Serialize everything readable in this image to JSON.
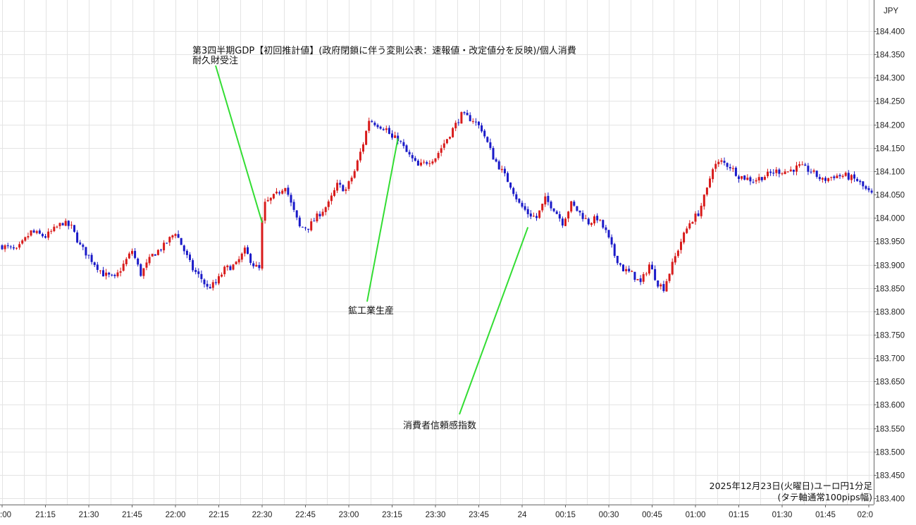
{
  "chart_data": {
    "type": "candlestick",
    "currency_label": "JPY",
    "caption_line1": "2025年12月23日(火曜日)ユーロ円1分足",
    "caption_line2": "(タテ軸通常100pips幅)",
    "ylim": [
      183.4,
      184.4
    ],
    "y_ticks": [
      "184.400",
      "184.350",
      "184.300",
      "184.250",
      "184.200",
      "184.150",
      "184.100",
      "184.050",
      "184.000",
      "183.950",
      "183.900",
      "183.850",
      "183.800",
      "183.750",
      "183.700",
      "183.650",
      "183.600",
      "183.550",
      "183.500",
      "183.450",
      "183.400"
    ],
    "x_ticks": [
      ":00",
      "21:15",
      "21:30",
      "21:45",
      "22:00",
      "22:15",
      "22:30",
      "22:45",
      "23:00",
      "23:15",
      "23:30",
      "23:45",
      "24",
      "00:15",
      "00:30",
      "00:45",
      "01:00",
      "01:15",
      "01:30",
      "01:45",
      "02:0"
    ],
    "grid": true,
    "up_color": "#d81b1b",
    "down_color": "#1a1ac8",
    "annotation_color": "#33dd33",
    "anchors": [
      {
        "t": 0,
        "p": 183.94
      },
      {
        "t": 5,
        "p": 183.93
      },
      {
        "t": 10,
        "p": 183.97
      },
      {
        "t": 15,
        "p": 183.96
      },
      {
        "t": 21,
        "p": 183.99
      },
      {
        "t": 24,
        "p": 183.98
      },
      {
        "t": 27,
        "p": 183.94
      },
      {
        "t": 31,
        "p": 183.91
      },
      {
        "t": 35,
        "p": 183.88
      },
      {
        "t": 39,
        "p": 183.87
      },
      {
        "t": 42,
        "p": 183.9
      },
      {
        "t": 45,
        "p": 183.93
      },
      {
        "t": 48,
        "p": 183.88
      },
      {
        "t": 52,
        "p": 183.92
      },
      {
        "t": 56,
        "p": 183.94
      },
      {
        "t": 60,
        "p": 183.97
      },
      {
        "t": 63,
        "p": 183.93
      },
      {
        "t": 66,
        "p": 183.89
      },
      {
        "t": 69,
        "p": 183.87
      },
      {
        "t": 71,
        "p": 183.85
      },
      {
        "t": 74,
        "p": 183.86
      },
      {
        "t": 77,
        "p": 183.89
      },
      {
        "t": 81,
        "p": 183.9
      },
      {
        "t": 84,
        "p": 183.93
      },
      {
        "t": 87,
        "p": 183.9
      },
      {
        "t": 89,
        "p": 183.89
      },
      {
        "t": 90,
        "p": 183.99
      },
      {
        "t": 91,
        "p": 184.03
      },
      {
        "t": 95,
        "p": 184.05
      },
      {
        "t": 98,
        "p": 184.07
      },
      {
        "t": 100,
        "p": 184.03
      },
      {
        "t": 103,
        "p": 183.98
      },
      {
        "t": 106,
        "p": 183.98
      },
      {
        "t": 110,
        "p": 184.01
      },
      {
        "t": 113,
        "p": 184.03
      },
      {
        "t": 116,
        "p": 184.07
      },
      {
        "t": 119,
        "p": 184.06
      },
      {
        "t": 122,
        "p": 184.1
      },
      {
        "t": 125,
        "p": 184.16
      },
      {
        "t": 127,
        "p": 184.21
      },
      {
        "t": 130,
        "p": 184.2
      },
      {
        "t": 133,
        "p": 184.19
      },
      {
        "t": 135,
        "p": 184.17
      },
      {
        "t": 137,
        "p": 184.17
      },
      {
        "t": 140,
        "p": 184.14
      },
      {
        "t": 144,
        "p": 184.11
      },
      {
        "t": 147,
        "p": 184.12
      },
      {
        "t": 150,
        "p": 184.13
      },
      {
        "t": 153,
        "p": 184.16
      },
      {
        "t": 156,
        "p": 184.19
      },
      {
        "t": 159,
        "p": 184.22
      },
      {
        "t": 163,
        "p": 184.21
      },
      {
        "t": 166,
        "p": 184.19
      },
      {
        "t": 170,
        "p": 184.13
      },
      {
        "t": 173,
        "p": 184.1
      },
      {
        "t": 176,
        "p": 184.07
      },
      {
        "t": 179,
        "p": 184.03
      },
      {
        "t": 182,
        "p": 184.01
      },
      {
        "t": 185,
        "p": 184.0
      },
      {
        "t": 188,
        "p": 184.04
      },
      {
        "t": 191,
        "p": 184.02
      },
      {
        "t": 194,
        "p": 183.99
      },
      {
        "t": 197,
        "p": 184.03
      },
      {
        "t": 200,
        "p": 184.01
      },
      {
        "t": 203,
        "p": 183.99
      },
      {
        "t": 206,
        "p": 184.0
      },
      {
        "t": 209,
        "p": 183.97
      },
      {
        "t": 212,
        "p": 183.92
      },
      {
        "t": 215,
        "p": 183.89
      },
      {
        "t": 218,
        "p": 183.88
      },
      {
        "t": 221,
        "p": 183.86
      },
      {
        "t": 224,
        "p": 183.9
      },
      {
        "t": 227,
        "p": 183.86
      },
      {
        "t": 229,
        "p": 183.85
      },
      {
        "t": 232,
        "p": 183.9
      },
      {
        "t": 235,
        "p": 183.95
      },
      {
        "t": 238,
        "p": 183.99
      },
      {
        "t": 241,
        "p": 184.01
      },
      {
        "t": 244,
        "p": 184.06
      },
      {
        "t": 246,
        "p": 184.11
      },
      {
        "t": 249,
        "p": 184.12
      },
      {
        "t": 252,
        "p": 184.11
      },
      {
        "t": 255,
        "p": 184.09
      },
      {
        "t": 260,
        "p": 184.08
      },
      {
        "t": 264,
        "p": 184.09
      },
      {
        "t": 268,
        "p": 184.1
      },
      {
        "t": 272,
        "p": 184.1
      },
      {
        "t": 276,
        "p": 184.11
      },
      {
        "t": 280,
        "p": 184.1
      },
      {
        "t": 284,
        "p": 184.08
      },
      {
        "t": 288,
        "p": 184.09
      },
      {
        "t": 292,
        "p": 184.09
      },
      {
        "t": 296,
        "p": 184.08
      },
      {
        "t": 299,
        "p": 184.06
      },
      {
        "t": 301,
        "p": 184.05
      }
    ],
    "annotations": [
      {
        "line1": "第3四半期GDP【初回推計値】(政府閉鎖に伴う変則公表：速報値・改定値分を反映)/個人消費",
        "line2": "耐久財受注",
        "time_index": 90,
        "price": 183.99
      },
      {
        "line1": "鉱工業生産",
        "line2": "",
        "time_index": 137,
        "price": 184.17
      },
      {
        "line1": "消費者信頼感指数",
        "line2": "",
        "time_index": 182,
        "price": 183.98
      }
    ]
  }
}
